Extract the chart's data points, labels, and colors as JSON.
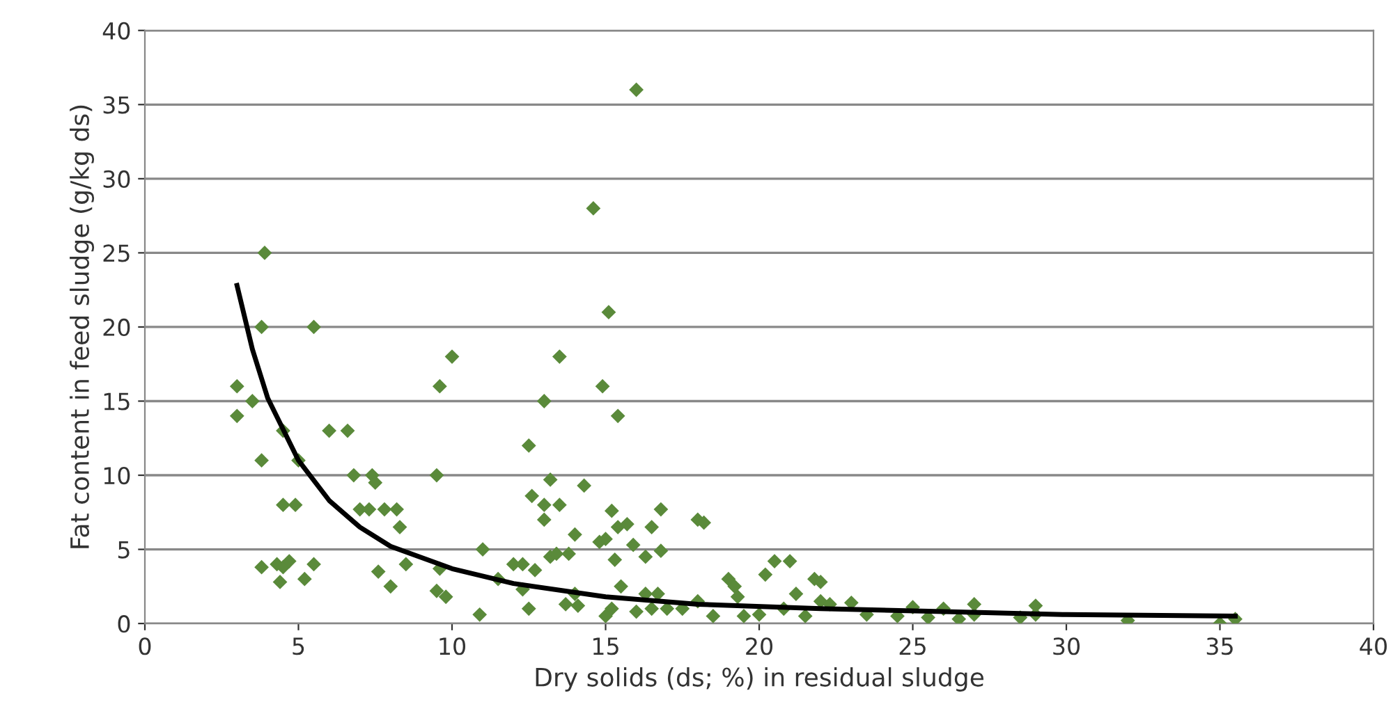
{
  "chart_data": {
    "type": "scatter",
    "xlabel": "Dry solids (ds; %) in residual sludge",
    "ylabel": "Fat content in feed sludge (g/kg ds)",
    "xlim": [
      0,
      40
    ],
    "ylim": [
      0,
      40
    ],
    "xticks": [
      0,
      5,
      10,
      15,
      20,
      25,
      30,
      35,
      40
    ],
    "yticks": [
      0,
      5,
      10,
      15,
      20,
      25,
      30,
      35,
      40
    ],
    "grid": "y",
    "marker": "diamond",
    "series": [
      {
        "color": "#5a8a3a",
        "x": [
          3.0,
          3.0,
          3.5,
          3.8,
          3.8,
          3.9,
          3.8,
          4.3,
          4.5,
          4.5,
          4.5,
          4.4,
          4.7,
          4.9,
          5.0,
          5.2,
          5.5,
          5.5,
          6.0,
          6.6,
          6.8,
          7.0,
          7.3,
          7.4,
          7.5,
          7.8,
          7.6,
          8.2,
          8.3,
          8.0,
          8.5,
          9.6,
          10.0,
          9.5,
          9.5,
          9.8,
          9.6,
          11.0,
          11.5,
          10.9,
          12.0,
          12.3,
          12.5,
          12.6,
          12.3,
          12.7,
          12.5,
          13.0,
          13.0,
          13.2,
          13.0,
          13.2,
          13.4,
          13.5,
          13.5,
          13.8,
          14.0,
          13.7,
          14.1,
          14.0,
          14.3,
          14.6,
          14.9,
          15.1,
          15.4,
          14.8,
          15.0,
          15.2,
          15.3,
          15.7,
          15.4,
          15.2,
          15.0,
          15.5,
          16.0,
          15.9,
          16.3,
          16.0,
          16.3,
          16.5,
          16.5,
          16.8,
          16.8,
          16.7,
          17.0,
          17.5,
          18.0,
          18.2,
          18.0,
          18.5,
          19.0,
          19.2,
          19.3,
          19.5,
          20.0,
          20.2,
          20.5,
          20.8,
          21.0,
          21.2,
          21.5,
          21.8,
          22.0,
          22.0,
          22.3,
          23.0,
          23.5,
          24.5,
          25.0,
          25.5,
          26.0,
          26.5,
          27.0,
          27.0,
          28.5,
          29.0,
          29.0,
          32.0,
          35.0,
          35.5
        ],
        "values": [
          16,
          14,
          15,
          11,
          20,
          25,
          3.8,
          4,
          8,
          13,
          3.8,
          2.8,
          4.2,
          8,
          11,
          3,
          4,
          20,
          13,
          13,
          10,
          7.7,
          7.7,
          10,
          9.5,
          7.7,
          3.5,
          7.7,
          6.5,
          2.5,
          4,
          16,
          18,
          10,
          2.2,
          1.8,
          3.7,
          5,
          3,
          0.6,
          4,
          4,
          12,
          8.6,
          2.3,
          3.6,
          1,
          15,
          8,
          9.7,
          7,
          4.5,
          4.7,
          18,
          8,
          4.7,
          2,
          1.3,
          1.2,
          6,
          9.3,
          28,
          16,
          21,
          14,
          5.5,
          5.7,
          7.6,
          4.3,
          6.7,
          6.5,
          1,
          0.5,
          2.5,
          36,
          5.3,
          4.5,
          0.8,
          2,
          1,
          6.5,
          7.7,
          4.9,
          2,
          1,
          1,
          7,
          6.8,
          1.5,
          0.5,
          3,
          2.5,
          1.8,
          0.5,
          0.6,
          3.3,
          4.2,
          1,
          4.2,
          2,
          0.5,
          3,
          2.8,
          1.5,
          1.3,
          1.4,
          0.6,
          0.5,
          1.1,
          0.4,
          1,
          0.3,
          1.3,
          0.6,
          0.4,
          1.2,
          0.6,
          0.2,
          0,
          0.3
        ]
      },
      {
        "type": "line",
        "color": "#000000",
        "marker": "none",
        "x": [
          3,
          3.5,
          4,
          5,
          6,
          7,
          8,
          10,
          12,
          15,
          18,
          22,
          26,
          30,
          35.5
        ],
        "values": [
          22.8,
          18.5,
          15.2,
          11,
          8.3,
          6.5,
          5.2,
          3.7,
          2.7,
          1.8,
          1.3,
          1.0,
          0.8,
          0.6,
          0.5
        ]
      }
    ]
  }
}
